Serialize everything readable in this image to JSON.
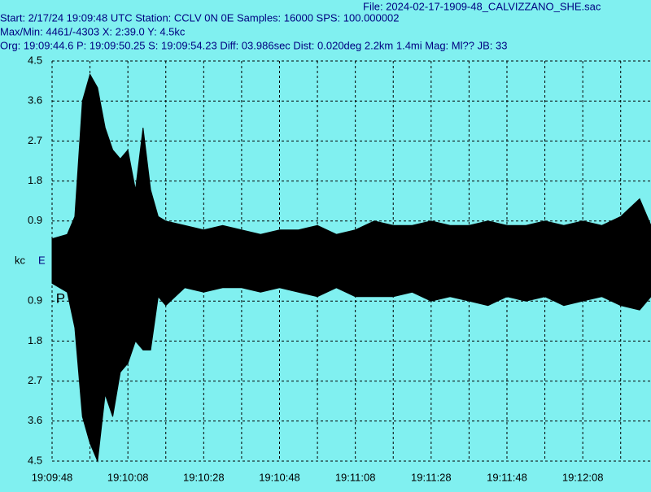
{
  "chart_data": {
    "type": "line",
    "header": [
      "File: 2024-02-17-1909-48_CALVIZZANO_SHE.sac",
      "Start: 2/17/24 19:09:48 UTC Station: CCLV 0N 0E Samples: 16000  SPS: 100.000002",
      "Max/Min: 4461/-4303 X: 2:39.0 Y: 4.5kc",
      "Org: 19:09:44.6 P: 19:09:50.25 S: 19:09:54.23 Diff: 03.986sec Dist: 0.020deg 2.2km 1.4mi  Mag: Ml?? JB: 33"
    ],
    "y_unit": "kc",
    "channel": "E",
    "phase_marker": {
      "text": "P",
      "x": 2.25
    },
    "xlim": [
      0,
      158
    ],
    "ylim": [
      -4.5,
      4.5
    ],
    "xticks": [
      {
        "value": 0,
        "label": "19:09:48"
      },
      {
        "value": 20,
        "label": "19:10:08"
      },
      {
        "value": 40,
        "label": "19:10:28"
      },
      {
        "value": 60,
        "label": "19:10:48"
      },
      {
        "value": 80,
        "label": "19:11:08"
      },
      {
        "value": 100,
        "label": "19:11:28"
      },
      {
        "value": 120,
        "label": "19:11:48"
      },
      {
        "value": 140,
        "label": "19:12:08"
      }
    ],
    "xminor": [
      10,
      30,
      50,
      70,
      90,
      110,
      130,
      150
    ],
    "yticks": [
      4.5,
      3.6,
      2.7,
      1.8,
      0.9,
      {
        "value": -0.9,
        "label": "0.9"
      },
      {
        "value": -1.8,
        "label": "1.8"
      },
      {
        "value": -2.7,
        "label": "2.7"
      },
      {
        "value": -3.6,
        "label": "3.6"
      },
      {
        "value": -4.5,
        "label": "4.5"
      }
    ],
    "grid": true,
    "x": [
      0,
      4,
      6,
      8,
      10,
      12,
      14,
      16,
      18,
      20,
      22,
      24,
      26,
      28,
      30,
      35,
      40,
      45,
      50,
      55,
      60,
      65,
      70,
      75,
      80,
      85,
      90,
      95,
      100,
      105,
      110,
      115,
      120,
      125,
      130,
      135,
      140,
      145,
      150,
      155,
      158
    ],
    "series": [
      {
        "color": "#000000",
        "values": [
          0.5,
          0.6,
          1.0,
          3.6,
          4.2,
          3.9,
          3.0,
          2.5,
          2.3,
          2.5,
          1.6,
          3.0,
          1.6,
          1.0,
          0.9,
          0.8,
          0.7,
          0.8,
          0.7,
          0.6,
          0.7,
          0.7,
          0.8,
          0.6,
          0.7,
          0.9,
          0.8,
          0.8,
          0.9,
          0.8,
          0.8,
          0.9,
          0.8,
          0.8,
          0.9,
          0.8,
          0.9,
          0.8,
          1.0,
          1.4,
          0.8
        ]
      },
      {
        "color": "#000000",
        "values": [
          -0.5,
          -0.7,
          -1.5,
          -3.5,
          -4.1,
          -4.5,
          -3.0,
          -3.5,
          -2.5,
          -2.3,
          -1.8,
          -2.0,
          -2.0,
          -0.8,
          -1.0,
          -0.6,
          -0.7,
          -0.6,
          -0.6,
          -0.7,
          -0.6,
          -0.7,
          -0.8,
          -0.6,
          -0.8,
          -0.8,
          -0.8,
          -0.7,
          -0.9,
          -0.8,
          -0.9,
          -1.0,
          -0.8,
          -0.9,
          -0.8,
          -1.0,
          -0.9,
          -0.8,
          -1.0,
          -1.1,
          -0.8
        ]
      }
    ]
  }
}
